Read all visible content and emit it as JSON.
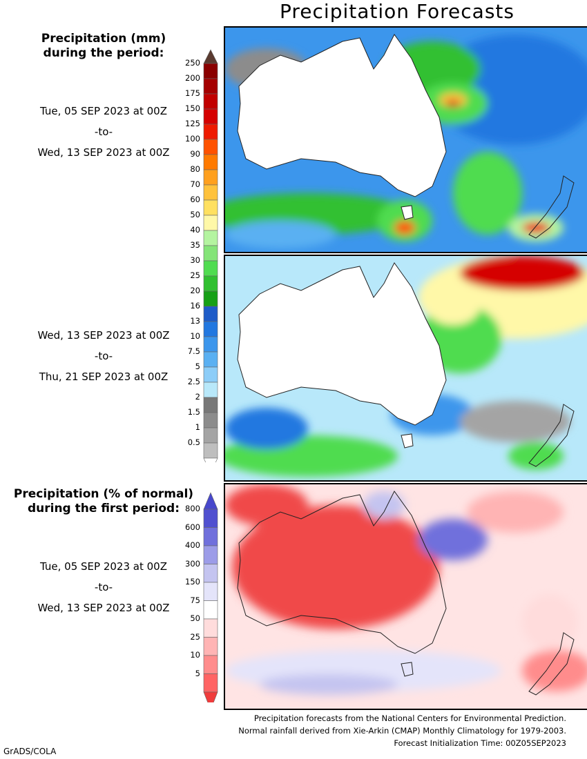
{
  "title": "Precipitation Forecasts",
  "mm_legend": {
    "heading_line1": "Precipitation (mm)",
    "heading_line2": "during the period:",
    "ticks": [
      "250",
      "200",
      "175",
      "150",
      "125",
      "100",
      "90",
      "80",
      "70",
      "60",
      "50",
      "40",
      "35",
      "30",
      "25",
      "20",
      "16",
      "13",
      "10",
      "7.5",
      "5",
      "2.5",
      "2",
      "1.5",
      "1",
      "0.5"
    ],
    "colors": [
      "#8a0000",
      "#a50000",
      "#c10000",
      "#d50000",
      "#ee1a00",
      "#ff5200",
      "#ff7a00",
      "#ffa01e",
      "#ffc23c",
      "#ffe060",
      "#fff8a8",
      "#b4f4a0",
      "#84e478",
      "#50dc50",
      "#30c030",
      "#16a016",
      "#1e5cc8",
      "#2278e0",
      "#3c96ec",
      "#5ab0f2",
      "#8ccdf8",
      "#b8e8fa",
      "#787878",
      "#8c8c8c",
      "#a4a4a4",
      "#bebebe"
    ],
    "top_arrow_color": "#5a3a30"
  },
  "pct_legend": {
    "heading_line1": "Precipitation (% of normal)",
    "heading_line2": "during the first period:",
    "ticks": [
      "800",
      "600",
      "400",
      "300",
      "150",
      "75",
      "50",
      "25",
      "10",
      "5"
    ],
    "colors": [
      "#5050d0",
      "#7070dc",
      "#9c9ce8",
      "#c4c4f0",
      "#e4e4fa",
      "#ffffff",
      "#ffdcdc",
      "#ffb4b4",
      "#ff8c8c",
      "#ff6464"
    ],
    "top_arrow_color": "#4848cc",
    "bottom_arrow_color": "#f03c3c"
  },
  "periods": [
    {
      "from": "Tue, 05 SEP 2023 at 00Z",
      "sep": "-to-",
      "to": "Wed, 13 SEP 2023 at 00Z"
    },
    {
      "from": "Wed, 13 SEP 2023 at 00Z",
      "sep": "-to-",
      "to": "Thu, 21 SEP 2023 at 00Z"
    },
    {
      "from": "Tue, 05 SEP 2023 at 00Z",
      "sep": "-to-",
      "to": "Wed, 13 SEP 2023 at 00Z"
    }
  ],
  "footer": {
    "line1": "Precipitation forecasts from the National Centers for Environmental Prediction.",
    "line2": "Normal rainfall derived from Xie-Arkin (CMAP) Monthly Climatology for 1979-2003.",
    "line3": "Forecast Initialization Time: 00Z05SEP2023"
  },
  "credit": "GrADS/COLA"
}
